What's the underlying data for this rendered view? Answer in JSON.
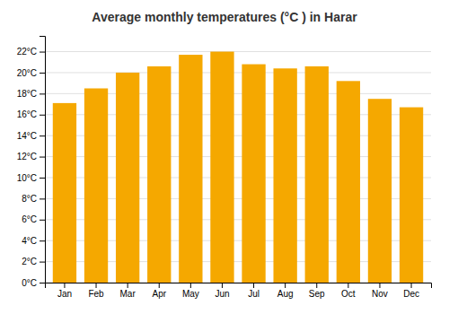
{
  "chart_data": {
    "type": "bar",
    "title": "Average monthly temperatures (°C ) in Harar",
    "categories": [
      "Jan",
      "Feb",
      "Mar",
      "Apr",
      "May",
      "Jun",
      "Jul",
      "Aug",
      "Sep",
      "Oct",
      "Nov",
      "Dec"
    ],
    "values": [
      17.1,
      18.5,
      20.0,
      20.6,
      21.7,
      22.0,
      20.8,
      20.4,
      20.6,
      19.2,
      17.5,
      16.7
    ],
    "color": "#F5A800",
    "ylim": [
      0,
      23.5
    ],
    "yticks": [
      {
        "value": 0,
        "label": "0°C"
      },
      {
        "value": 2,
        "label": "2°C"
      },
      {
        "value": 4,
        "label": "4°C"
      },
      {
        "value": 6,
        "label": "6°C"
      },
      {
        "value": 8,
        "label": "8°C"
      },
      {
        "value": 10,
        "label": "10°C"
      },
      {
        "value": 12,
        "label": "12°C"
      },
      {
        "value": 14,
        "label": "14°C"
      },
      {
        "value": 16,
        "label": "16°C"
      },
      {
        "value": 18,
        "label": "18°C"
      },
      {
        "value": 20,
        "label": "20°C"
      },
      {
        "value": 22,
        "label": "22°C"
      }
    ],
    "grid": true
  }
}
